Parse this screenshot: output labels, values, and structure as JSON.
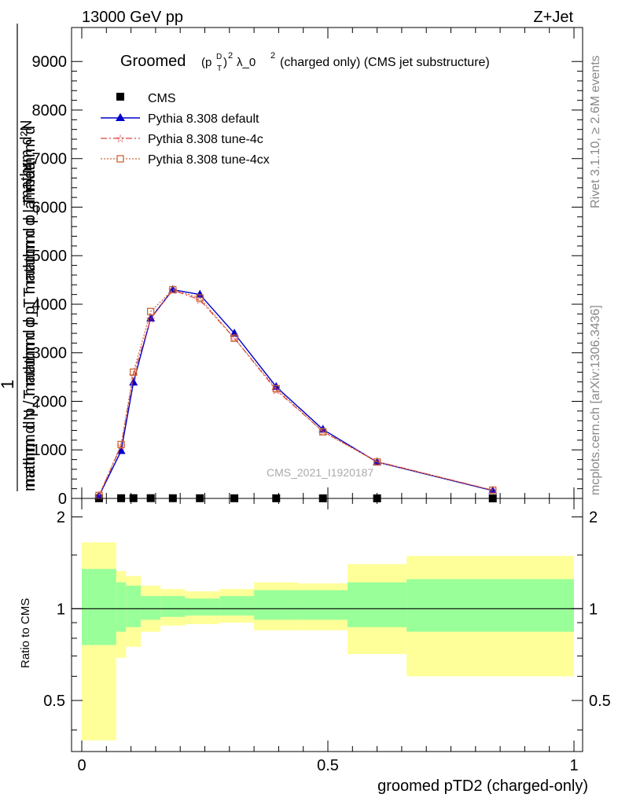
{
  "header": {
    "left": "13000 GeV pp",
    "right": "Z+Jet"
  },
  "side_labels": {
    "rivet": "Rivet 3.1.10, ≥ 2.6M events",
    "mcplots": "mcplots.cern.ch [arXiv:1306.3436]"
  },
  "watermark": "CMS_2021_I1920187",
  "chart_data": [
    {
      "type": "line",
      "title_main": "Groomed",
      "title_math_1": "(p",
      "title_math_sup_1": "D",
      "title_math_sub_1": "T",
      "title_math_2": ")",
      "title_math_sup_2": "2",
      "title_math_3": "λ_0",
      "title_math_sup_3": "2",
      "title_rest": "(charged only) (CMS jet substructure)",
      "ylabel_top": "mathrm d²N",
      "ylabel_mid": "mathrm d p_T mathrm d p_T mathrm d lambda",
      "ylabel_one": "1",
      "ylabel_bottom": "mathrm d N / mathrm d p_T mathrm d p_T mathrm d",
      "xlim": [
        0,
        1
      ],
      "ylim": [
        0,
        9700
      ],
      "yticks": [
        0,
        1000,
        2000,
        3000,
        4000,
        5000,
        6000,
        7000,
        8000,
        9000
      ],
      "ytick_labels": [
        "0",
        "1000",
        "2000",
        "3000",
        "4000",
        "5000",
        "6000",
        "7000",
        "8000",
        "9000"
      ],
      "legend_position": "top-left",
      "series": [
        {
          "name": "CMS",
          "color": "#000000",
          "marker": "square",
          "x": [
            0.035,
            0.08,
            0.105,
            0.14,
            0.185,
            0.24,
            0.31,
            0.395,
            0.49,
            0.6,
            0.835
          ],
          "y": [
            3,
            4,
            5,
            5,
            4,
            4,
            3,
            3,
            2,
            1,
            0.3
          ]
        },
        {
          "name": "Pythia 8.308 default",
          "color": "#0000cc",
          "marker": "triangle",
          "x": [
            0.035,
            0.08,
            0.105,
            0.14,
            0.185,
            0.24,
            0.31,
            0.395,
            0.49,
            0.6,
            0.835
          ],
          "y": [
            50,
            980,
            2390,
            3710,
            4300,
            4200,
            3400,
            2300,
            1420,
            750,
            160
          ]
        },
        {
          "name": "Pythia 8.308 tune-4c",
          "color": "#dd4444",
          "marker": "star",
          "x": [
            0.035,
            0.08,
            0.105,
            0.14,
            0.185,
            0.24,
            0.31,
            0.395,
            0.49,
            0.6,
            0.835
          ],
          "y": [
            55,
            1080,
            2530,
            3700,
            4290,
            4090,
            3300,
            2230,
            1380,
            760,
            170
          ]
        },
        {
          "name": "Pythia 8.308 tune-4cx",
          "color": "#cc6633",
          "marker": "open-square",
          "x": [
            0.035,
            0.08,
            0.105,
            0.14,
            0.185,
            0.24,
            0.31,
            0.395,
            0.49,
            0.6,
            0.835
          ],
          "y": [
            60,
            1110,
            2600,
            3850,
            4300,
            4130,
            3300,
            2260,
            1370,
            750,
            170
          ]
        }
      ]
    },
    {
      "type": "area",
      "xlabel": "groomed pTD2 (charged-only)",
      "ylabel": "Ratio to CMS",
      "xlim": [
        0,
        1
      ],
      "ylim": [
        0.34,
        2.3
      ],
      "log_y": true,
      "xticks": [
        0,
        0.5,
        1
      ],
      "xtick_labels": [
        "0",
        "0.5",
        "1"
      ],
      "yticks": [
        0.5,
        1,
        2
      ],
      "ytick_labels": [
        "0.5",
        "1",
        "2"
      ],
      "bins": [
        0,
        0.07,
        0.09,
        0.12,
        0.16,
        0.21,
        0.28,
        0.35,
        0.44,
        0.54,
        0.66,
        1.0
      ],
      "outer_band_lo": [
        0.37,
        0.69,
        0.75,
        0.84,
        0.88,
        0.89,
        0.9,
        0.85,
        0.85,
        0.71,
        0.6
      ],
      "outer_band_hi": [
        1.65,
        1.33,
        1.28,
        1.19,
        1.16,
        1.14,
        1.16,
        1.22,
        1.21,
        1.4,
        1.49
      ],
      "inner_band_lo": [
        0.76,
        0.84,
        0.87,
        0.92,
        0.94,
        0.95,
        0.95,
        0.92,
        0.92,
        0.87,
        0.84
      ],
      "inner_band_hi": [
        1.35,
        1.22,
        1.19,
        1.1,
        1.1,
        1.08,
        1.1,
        1.15,
        1.15,
        1.22,
        1.25
      ],
      "outer_band_color": "#ffff99",
      "inner_band_color": "#99ff99",
      "reference_value": 1
    }
  ]
}
